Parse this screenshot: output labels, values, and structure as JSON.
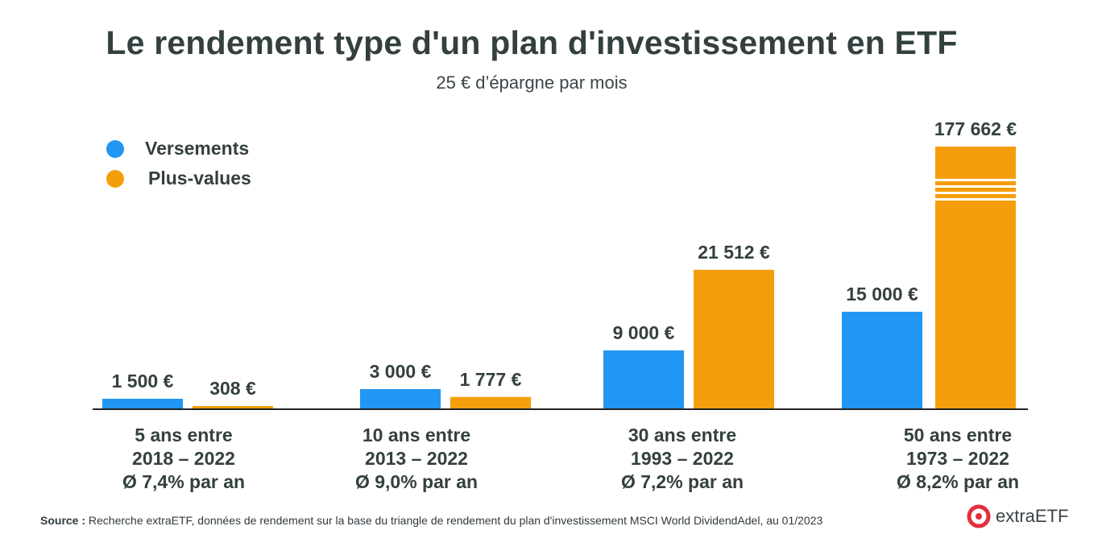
{
  "header": {
    "title": "Le rendement type d'un plan d'investissement en ETF",
    "subtitle": "25 € d’épargne par mois"
  },
  "legend": {
    "items": [
      {
        "label": "Versements",
        "color": "#2196f3"
      },
      {
        "label": "Plus-values",
        "color": "#f59e0b"
      }
    ]
  },
  "chart_data": {
    "type": "bar",
    "title": "Le rendement type d'un plan d'investissement en ETF",
    "subtitle": "25 € d’épargne par mois",
    "categories": [
      [
        "5 ans entre",
        "2018 – 2022",
        "Ø 7,4% par an"
      ],
      [
        "10 ans entre",
        "2013 – 2022",
        "Ø 9,0% par an"
      ],
      [
        "30 ans entre",
        "1993 – 2022",
        "Ø 7,2% par an"
      ],
      [
        "50 ans entre",
        "1973 – 2022",
        "Ø 8,2% par an"
      ]
    ],
    "series": [
      {
        "name": "Versements",
        "color": "#2196f3",
        "values": [
          1500,
          3000,
          9000,
          15000
        ],
        "labels": [
          "1 500 €",
          "3 000 €",
          "9 000 €",
          "15 000 €"
        ]
      },
      {
        "name": "Plus-values",
        "color": "#f59e0b",
        "values": [
          308,
          1777,
          21512,
          177662
        ],
        "labels": [
          "308 €",
          "1 777 €",
          "21 512 €",
          "177 662 €"
        ],
        "axis_break": [
          false,
          false,
          false,
          true
        ]
      }
    ],
    "legend_position": "top-left",
    "grid": false,
    "broken_axis": true
  },
  "footer": {
    "source_prefix": "Source :",
    "source_text": " Recherche extraETF, données de rendement sur la base du triangle de rendement du plan d'investissement MSCI World DividendAdel, au 01/2023",
    "brand": "extraETF",
    "brand_color": "#e52d3c"
  }
}
